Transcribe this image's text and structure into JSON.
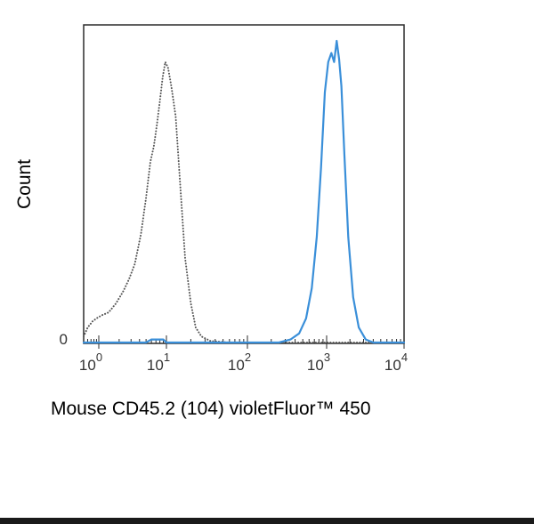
{
  "chart_data": {
    "type": "line",
    "title": "",
    "xlabel": "Mouse CD45.2 (104) violetFluor™ 450",
    "ylabel": "Count",
    "x_scale": "log",
    "xlim": [
      0.5,
      10000
    ],
    "ylim": [
      0,
      1.0
    ],
    "grid": false,
    "legend": "none",
    "x_ticks": [
      {
        "base": "10",
        "exp": "0",
        "value": 1
      },
      {
        "base": "10",
        "exp": "1",
        "value": 10
      },
      {
        "base": "10",
        "exp": "2",
        "value": 100
      },
      {
        "base": "10",
        "exp": "3",
        "value": 1000
      },
      {
        "base": "10",
        "exp": "4",
        "value": 10000
      }
    ],
    "y_ticks": [
      {
        "label": "0",
        "value": 0
      }
    ],
    "series": [
      {
        "style": "dotted",
        "color": "#555555",
        "points": [
          [
            0.5,
            0.02
          ],
          [
            0.6,
            0.05
          ],
          [
            0.75,
            0.07
          ],
          [
            0.9,
            0.08
          ],
          [
            1.1,
            0.09
          ],
          [
            1.4,
            0.1
          ],
          [
            1.8,
            0.13
          ],
          [
            2.3,
            0.17
          ],
          [
            2.8,
            0.21
          ],
          [
            3.4,
            0.26
          ],
          [
            4.2,
            0.36
          ],
          [
            5.0,
            0.48
          ],
          [
            5.8,
            0.6
          ],
          [
            6.5,
            0.65
          ],
          [
            7.2,
            0.72
          ],
          [
            8.0,
            0.8
          ],
          [
            8.8,
            0.88
          ],
          [
            9.6,
            0.93
          ],
          [
            10.5,
            0.91
          ],
          [
            11.5,
            0.85
          ],
          [
            13,
            0.75
          ],
          [
            15,
            0.5
          ],
          [
            17,
            0.28
          ],
          [
            20,
            0.13
          ],
          [
            23,
            0.05
          ],
          [
            27,
            0.02
          ],
          [
            35,
            0.005
          ],
          [
            60,
            0.0
          ],
          [
            300,
            0.0
          ],
          [
            10000,
            0.0
          ]
        ]
      },
      {
        "style": "solid",
        "color": "#3a8fd9",
        "points": [
          [
            0.5,
            0.0
          ],
          [
            5,
            0.0
          ],
          [
            6,
            0.01
          ],
          [
            9,
            0.01
          ],
          [
            10,
            0.0
          ],
          [
            100,
            0.0
          ],
          [
            250,
            0.0
          ],
          [
            350,
            0.01
          ],
          [
            450,
            0.03
          ],
          [
            550,
            0.08
          ],
          [
            650,
            0.18
          ],
          [
            750,
            0.35
          ],
          [
            850,
            0.58
          ],
          [
            950,
            0.83
          ],
          [
            1050,
            0.93
          ],
          [
            1150,
            0.96
          ],
          [
            1250,
            0.93
          ],
          [
            1350,
            1.0
          ],
          [
            1450,
            0.94
          ],
          [
            1550,
            0.85
          ],
          [
            1700,
            0.62
          ],
          [
            1900,
            0.35
          ],
          [
            2200,
            0.15
          ],
          [
            2600,
            0.05
          ],
          [
            3200,
            0.01
          ],
          [
            4000,
            0.0
          ],
          [
            10000,
            0.0
          ]
        ]
      }
    ]
  }
}
